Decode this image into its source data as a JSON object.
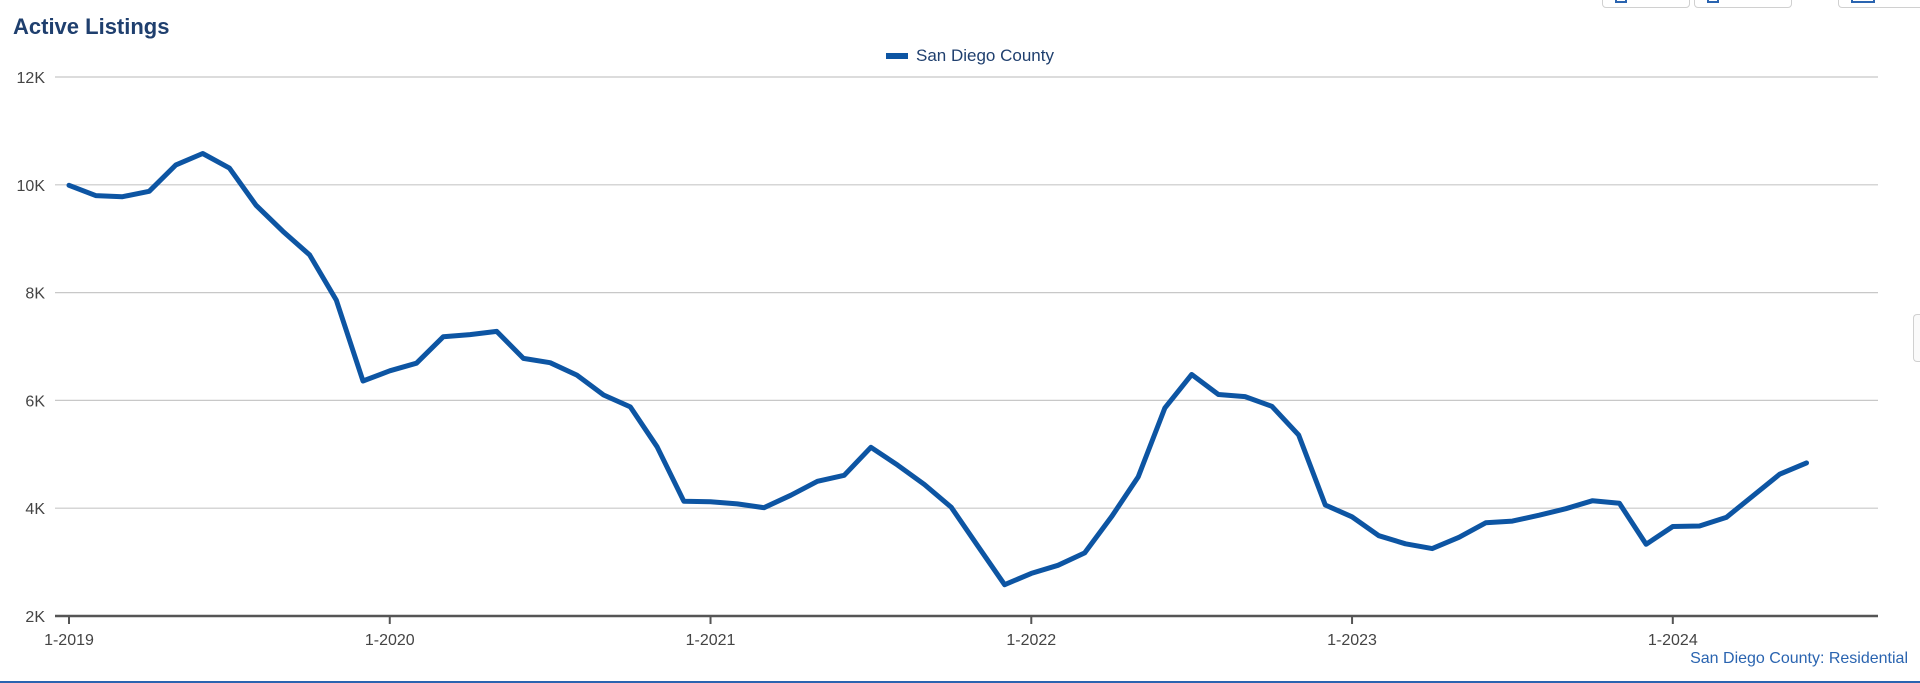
{
  "title": "Active Listings",
  "source_label": "San Diego County: Residential",
  "colors": {
    "series": "#0d55a3",
    "title": "#1f3f6e",
    "grid": "#c8c8c8",
    "axis": "#555555"
  },
  "chart_data": {
    "type": "line",
    "title": "Active Listings",
    "xlabel": "",
    "ylabel": "",
    "ylim": [
      2000,
      12000
    ],
    "xlim": [
      "1-2019",
      "6-2024"
    ],
    "grid": "horizontal",
    "legend_position": "top-center",
    "y_ticks": [
      {
        "value": 2000,
        "label": "2K"
      },
      {
        "value": 4000,
        "label": "4K"
      },
      {
        "value": 6000,
        "label": "6K"
      },
      {
        "value": 8000,
        "label": "8K"
      },
      {
        "value": 10000,
        "label": "10K"
      },
      {
        "value": 12000,
        "label": "12K"
      }
    ],
    "x_ticks": [
      "1-2019",
      "1-2020",
      "1-2021",
      "1-2022",
      "1-2023",
      "1-2024"
    ],
    "series": [
      {
        "name": "San Diego County",
        "x": [
          "1-2019",
          "2-2019",
          "3-2019",
          "4-2019",
          "5-2019",
          "6-2019",
          "7-2019",
          "8-2019",
          "9-2019",
          "10-2019",
          "11-2019",
          "12-2019",
          "1-2020",
          "2-2020",
          "3-2020",
          "4-2020",
          "5-2020",
          "6-2020",
          "7-2020",
          "8-2020",
          "9-2020",
          "10-2020",
          "11-2020",
          "12-2020",
          "1-2021",
          "2-2021",
          "3-2021",
          "4-2021",
          "5-2021",
          "6-2021",
          "7-2021",
          "8-2021",
          "9-2021",
          "10-2021",
          "11-2021",
          "12-2021",
          "1-2022",
          "2-2022",
          "3-2022",
          "4-2022",
          "5-2022",
          "6-2022",
          "7-2022",
          "8-2022",
          "9-2022",
          "10-2022",
          "11-2022",
          "12-2022",
          "1-2023",
          "2-2023",
          "3-2023",
          "4-2023",
          "5-2023",
          "6-2023",
          "7-2023",
          "8-2023",
          "9-2023",
          "10-2023",
          "11-2023",
          "12-2023",
          "1-2024",
          "2-2024",
          "3-2024",
          "4-2024",
          "5-2024",
          "6-2024"
        ],
        "values": [
          9990,
          9800,
          9780,
          9880,
          10370,
          10580,
          10310,
          9620,
          9140,
          8700,
          7860,
          6360,
          6550,
          6690,
          7180,
          7220,
          7280,
          6780,
          6700,
          6470,
          6100,
          5880,
          5140,
          4130,
          4120,
          4080,
          4010,
          4240,
          4500,
          4610,
          5130,
          4800,
          4440,
          4020,
          3300,
          2580,
          2790,
          2940,
          3170,
          3840,
          4580,
          5860,
          6480,
          6110,
          6070,
          5890,
          5360,
          4060,
          3840,
          3490,
          3340,
          3250,
          3460,
          3730,
          3760,
          3870,
          3990,
          4140,
          4090,
          3330,
          3660,
          3670,
          3830,
          4230,
          4630,
          4840
        ]
      }
    ]
  }
}
